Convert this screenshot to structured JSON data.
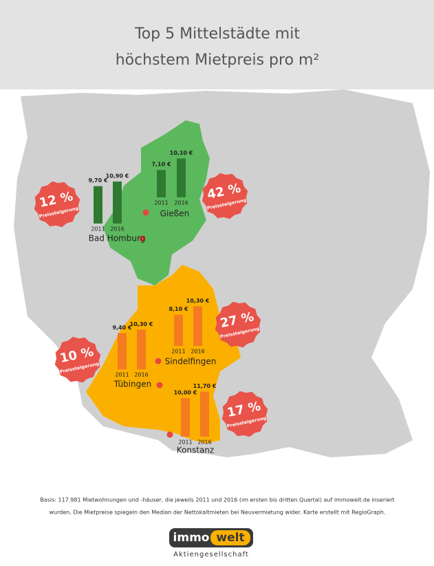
{
  "title": [
    "Top 5 Mittelstädte mit",
    "höchstem Mietpreis pro m²"
  ],
  "cities": [
    {
      "name": "Bad Homburg",
      "years": [
        "2011",
        "2016"
      ],
      "values": [
        9.7,
        10.9
      ],
      "value_labels": [
        "9,70 €",
        "10,90 €"
      ],
      "increase": "12 %",
      "increase_caption": "Preissteigerung",
      "color": "#2e7a31"
    },
    {
      "name": "Gießen",
      "years": [
        "2011",
        "2016"
      ],
      "values": [
        7.1,
        10.1
      ],
      "value_labels": [
        "7,10 €",
        "10,10 €"
      ],
      "increase": "42 %",
      "increase_caption": "Preissteigerung",
      "color": "#2e7a31"
    },
    {
      "name": "Tübingen",
      "years": [
        "2011",
        "2016"
      ],
      "values": [
        9.4,
        10.3
      ],
      "value_labels": [
        "9,40 €",
        "10,30 €"
      ],
      "increase": "10 %",
      "increase_caption": "Preissteigerung",
      "color": "#f47b20"
    },
    {
      "name": "Sindelfingen",
      "years": [
        "2011",
        "2016"
      ],
      "values": [
        8.1,
        10.3
      ],
      "value_labels": [
        "8,10 €",
        "10,30 €"
      ],
      "increase": "27 %",
      "increase_caption": "Preissteigerung",
      "color": "#f47b20"
    },
    {
      "name": "Konstanz",
      "years": [
        "2011",
        "2016"
      ],
      "values": [
        10.0,
        11.7
      ],
      "value_labels": [
        "10,00 €",
        "11,70 €"
      ],
      "increase": "17 %",
      "increase_caption": "Preissteigerung",
      "color": "#f47b20"
    }
  ],
  "footer": [
    "Basis: 117.981 Mietwohnungen und -häuser, die jeweils 2011 und 2016 (im ersten bis dritten Quartal) auf immowelt.de inseriert",
    "wurden. Die Mietpreise spiegeln den Median der Nettokaltmieten bei Neuvermietung wider. Karte erstellt mit RegioGraph."
  ],
  "logo": {
    "part1": "immo",
    "part2": "welt",
    "subtitle": "Aktiengesellschaft"
  }
}
